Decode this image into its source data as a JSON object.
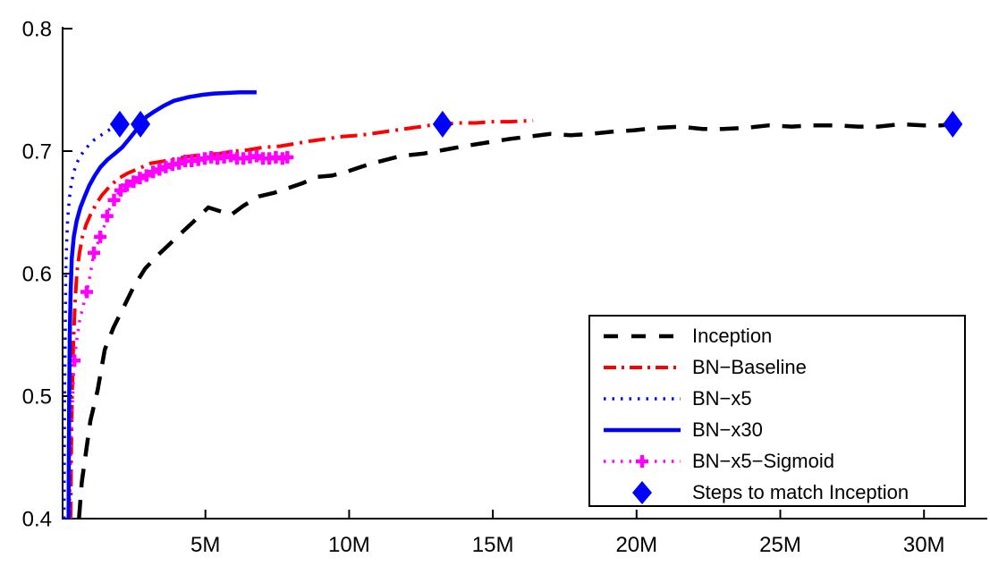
{
  "colors": {
    "black": "#000000",
    "red": "#ff0000",
    "blue": "#0000ff",
    "magenta": "#ff00ff",
    "background": "#ffffff",
    "axis": "#000000"
  },
  "axes": {
    "x_ticks": [
      {
        "value": 5,
        "label": "5M"
      },
      {
        "value": 10,
        "label": "10M"
      },
      {
        "value": 15,
        "label": "15M"
      },
      {
        "value": 20,
        "label": "20M"
      },
      {
        "value": 25,
        "label": "25M"
      },
      {
        "value": 30,
        "label": "30M"
      }
    ],
    "y_ticks": [
      {
        "value": 0.4,
        "label": "0.4"
      },
      {
        "value": 0.5,
        "label": "0.5"
      },
      {
        "value": 0.6,
        "label": "0.6"
      },
      {
        "value": 0.7,
        "label": "0.7"
      },
      {
        "value": 0.8,
        "label": "0.8"
      }
    ]
  },
  "legend": {
    "position": "lower-right"
  },
  "chart_data": {
    "type": "line",
    "title": "",
    "xlabel": "",
    "ylabel": "",
    "xlim": [
      0,
      32.2
    ],
    "ylim": [
      0.4,
      0.8
    ],
    "grid": false,
    "x_unit_suffix": "M",
    "series": [
      {
        "name": "Inception",
        "color": "#000000",
        "line_style": "dashed",
        "line_width": 4.5,
        "marker": "none",
        "points": [
          [
            0.6,
            0.4
          ],
          [
            0.7,
            0.43
          ],
          [
            0.85,
            0.455
          ],
          [
            1.0,
            0.48
          ],
          [
            1.25,
            0.505
          ],
          [
            1.5,
            0.538
          ],
          [
            1.8,
            0.556
          ],
          [
            2.1,
            0.57
          ],
          [
            2.5,
            0.589
          ],
          [
            2.9,
            0.604
          ],
          [
            3.3,
            0.614
          ],
          [
            3.75,
            0.624
          ],
          [
            4.2,
            0.634
          ],
          [
            4.7,
            0.645
          ],
          [
            5.1,
            0.654
          ],
          [
            5.5,
            0.651
          ],
          [
            5.9,
            0.648
          ],
          [
            6.3,
            0.655
          ],
          [
            6.85,
            0.663
          ],
          [
            7.4,
            0.666
          ],
          [
            7.9,
            0.67
          ],
          [
            8.4,
            0.674
          ],
          [
            8.9,
            0.679
          ],
          [
            9.4,
            0.68
          ],
          [
            9.9,
            0.683
          ],
          [
            10.4,
            0.687
          ],
          [
            10.8,
            0.69
          ],
          [
            11.3,
            0.693
          ],
          [
            11.8,
            0.696
          ],
          [
            12.6,
            0.698
          ],
          [
            13.3,
            0.701
          ],
          [
            14.0,
            0.704
          ],
          [
            14.8,
            0.707
          ],
          [
            15.6,
            0.71
          ],
          [
            16.3,
            0.712
          ],
          [
            17.0,
            0.714
          ],
          [
            17.7,
            0.713
          ],
          [
            18.4,
            0.714
          ],
          [
            19.2,
            0.716
          ],
          [
            19.9,
            0.717
          ],
          [
            20.7,
            0.719
          ],
          [
            21.5,
            0.72
          ],
          [
            22.3,
            0.718
          ],
          [
            23.0,
            0.718
          ],
          [
            23.8,
            0.719
          ],
          [
            24.6,
            0.721
          ],
          [
            25.4,
            0.72
          ],
          [
            26.1,
            0.721
          ],
          [
            26.9,
            0.721
          ],
          [
            27.7,
            0.72
          ],
          [
            28.4,
            0.72
          ],
          [
            29.2,
            0.722
          ],
          [
            30.0,
            0.721
          ],
          [
            30.6,
            0.721
          ],
          [
            31.0,
            0.722
          ]
        ]
      },
      {
        "name": "BN−Baseline",
        "color": "#ff0000",
        "line_style": "dash-dot",
        "line_width": 4,
        "marker": "none",
        "points": [
          [
            0.31,
            0.4
          ],
          [
            0.33,
            0.45
          ],
          [
            0.36,
            0.5
          ],
          [
            0.4,
            0.54
          ],
          [
            0.46,
            0.575
          ],
          [
            0.53,
            0.601
          ],
          [
            0.62,
            0.617
          ],
          [
            0.72,
            0.63
          ],
          [
            0.85,
            0.64
          ],
          [
            1.0,
            0.648
          ],
          [
            1.2,
            0.657
          ],
          [
            1.4,
            0.664
          ],
          [
            1.7,
            0.672
          ],
          [
            2.0,
            0.678
          ],
          [
            2.3,
            0.682
          ],
          [
            2.7,
            0.686
          ],
          [
            3.1,
            0.69
          ],
          [
            3.6,
            0.692
          ],
          [
            4.0,
            0.694
          ],
          [
            4.5,
            0.696
          ],
          [
            5.0,
            0.697
          ],
          [
            5.5,
            0.698
          ],
          [
            6.0,
            0.7
          ],
          [
            6.5,
            0.701
          ],
          [
            7.0,
            0.703
          ],
          [
            7.6,
            0.704
          ],
          [
            8.1,
            0.706
          ],
          [
            8.6,
            0.708
          ],
          [
            9.2,
            0.71
          ],
          [
            9.8,
            0.712
          ],
          [
            10.4,
            0.713
          ],
          [
            11.0,
            0.715
          ],
          [
            11.6,
            0.717
          ],
          [
            12.2,
            0.719
          ],
          [
            12.8,
            0.721
          ],
          [
            13.25,
            0.722
          ],
          [
            13.8,
            0.723
          ],
          [
            14.4,
            0.723
          ],
          [
            15.0,
            0.724
          ],
          [
            15.6,
            0.724
          ],
          [
            16.4,
            0.725
          ]
        ]
      },
      {
        "name": "BN−x5",
        "color": "#0000ff",
        "line_style": "dotted",
        "line_width": 3.5,
        "marker": "none",
        "points": [
          [
            0.08,
            0.4
          ],
          [
            0.09,
            0.45
          ],
          [
            0.1,
            0.5
          ],
          [
            0.12,
            0.55
          ],
          [
            0.14,
            0.6
          ],
          [
            0.17,
            0.625
          ],
          [
            0.21,
            0.645
          ],
          [
            0.27,
            0.662
          ],
          [
            0.34,
            0.674
          ],
          [
            0.42,
            0.683
          ],
          [
            0.52,
            0.69
          ],
          [
            0.65,
            0.696
          ],
          [
            0.8,
            0.701
          ],
          [
            0.95,
            0.705
          ],
          [
            1.12,
            0.709
          ],
          [
            1.3,
            0.712
          ],
          [
            1.5,
            0.715
          ],
          [
            1.7,
            0.718
          ],
          [
            1.88,
            0.72
          ],
          [
            2.02,
            0.722
          ]
        ]
      },
      {
        "name": "BN−x30",
        "color": "#0000ff",
        "line_style": "solid",
        "line_width": 4.5,
        "marker": "none",
        "points": [
          [
            0.24,
            0.4
          ],
          [
            0.25,
            0.45
          ],
          [
            0.26,
            0.5
          ],
          [
            0.28,
            0.55
          ],
          [
            0.31,
            0.585
          ],
          [
            0.35,
            0.612
          ],
          [
            0.42,
            0.63
          ],
          [
            0.52,
            0.643
          ],
          [
            0.65,
            0.654
          ],
          [
            0.8,
            0.663
          ],
          [
            0.96,
            0.672
          ],
          [
            1.15,
            0.68
          ],
          [
            1.35,
            0.687
          ],
          [
            1.59,
            0.693
          ],
          [
            1.85,
            0.698
          ],
          [
            2.1,
            0.703
          ],
          [
            2.35,
            0.71
          ],
          [
            2.55,
            0.716
          ],
          [
            2.74,
            0.722
          ],
          [
            2.95,
            0.728
          ],
          [
            3.2,
            0.732
          ],
          [
            3.55,
            0.737
          ],
          [
            3.9,
            0.741
          ],
          [
            4.4,
            0.744
          ],
          [
            4.9,
            0.746
          ],
          [
            5.3,
            0.747
          ],
          [
            5.8,
            0.7475
          ],
          [
            6.2,
            0.748
          ],
          [
            6.5,
            0.748
          ],
          [
            6.78,
            0.748
          ]
        ]
      },
      {
        "name": "BN−x5−Sigmoid",
        "color": "#ff00ff",
        "line_style": "dotted",
        "line_width": 3.5,
        "marker": "plus",
        "points": [
          [
            0.27,
            0.4
          ],
          [
            0.3,
            0.44
          ],
          [
            0.35,
            0.48
          ],
          [
            0.4,
            0.51
          ],
          [
            0.44,
            0.529
          ],
          [
            0.52,
            0.545
          ],
          [
            0.62,
            0.561
          ],
          [
            0.74,
            0.573
          ],
          [
            0.87,
            0.585
          ],
          [
            1.0,
            0.6
          ],
          [
            1.12,
            0.617
          ],
          [
            1.34,
            0.63
          ],
          [
            1.5,
            0.64
          ],
          [
            1.65,
            0.652
          ],
          [
            1.8,
            0.659
          ],
          [
            1.95,
            0.665
          ],
          [
            2.1,
            0.669
          ],
          [
            2.27,
            0.672
          ],
          [
            2.45,
            0.674
          ],
          [
            2.67,
            0.677
          ],
          [
            2.85,
            0.679
          ],
          [
            3.0,
            0.681
          ],
          [
            3.2,
            0.683
          ],
          [
            3.4,
            0.685
          ],
          [
            3.6,
            0.687
          ],
          [
            3.85,
            0.689
          ],
          [
            4.05,
            0.69
          ],
          [
            4.25,
            0.692
          ],
          [
            4.5,
            0.692
          ],
          [
            4.7,
            0.693
          ],
          [
            4.9,
            0.694
          ],
          [
            5.1,
            0.695
          ],
          [
            5.3,
            0.694
          ],
          [
            5.5,
            0.694
          ],
          [
            5.7,
            0.695
          ],
          [
            5.9,
            0.696
          ],
          [
            6.1,
            0.694
          ],
          [
            6.3,
            0.694
          ],
          [
            6.5,
            0.695
          ],
          [
            6.75,
            0.696
          ],
          [
            6.95,
            0.694
          ],
          [
            7.2,
            0.694
          ],
          [
            7.45,
            0.695
          ],
          [
            7.8,
            0.695
          ]
        ],
        "marker_points": [
          [
            0.44,
            0.529
          ],
          [
            0.87,
            0.585
          ],
          [
            1.12,
            0.617
          ],
          [
            1.34,
            0.63
          ],
          [
            1.58,
            0.647
          ],
          [
            1.82,
            0.66
          ],
          [
            2.05,
            0.668
          ],
          [
            2.27,
            0.672
          ],
          [
            2.5,
            0.675
          ],
          [
            2.72,
            0.678
          ],
          [
            2.95,
            0.68
          ],
          [
            3.18,
            0.683
          ],
          [
            3.4,
            0.685
          ],
          [
            3.62,
            0.687
          ],
          [
            3.85,
            0.689
          ],
          [
            4.08,
            0.69
          ],
          [
            4.3,
            0.692
          ],
          [
            4.52,
            0.692
          ],
          [
            4.75,
            0.693
          ],
          [
            4.98,
            0.694
          ],
          [
            5.2,
            0.695
          ],
          [
            5.42,
            0.694
          ],
          [
            5.65,
            0.695
          ],
          [
            5.88,
            0.696
          ],
          [
            6.1,
            0.694
          ],
          [
            6.32,
            0.694
          ],
          [
            6.55,
            0.695
          ],
          [
            6.78,
            0.696
          ],
          [
            7.0,
            0.694
          ],
          [
            7.22,
            0.694
          ],
          [
            7.45,
            0.695
          ],
          [
            7.68,
            0.694
          ],
          [
            7.85,
            0.695
          ]
        ]
      },
      {
        "name": "Steps to match Inception",
        "color": "#0000ff",
        "line_style": "none",
        "line_width": 0,
        "marker": "diamond",
        "points": [
          [
            2.02,
            0.722
          ],
          [
            2.74,
            0.722
          ],
          [
            13.25,
            0.722
          ],
          [
            31.0,
            0.722
          ]
        ]
      }
    ]
  }
}
